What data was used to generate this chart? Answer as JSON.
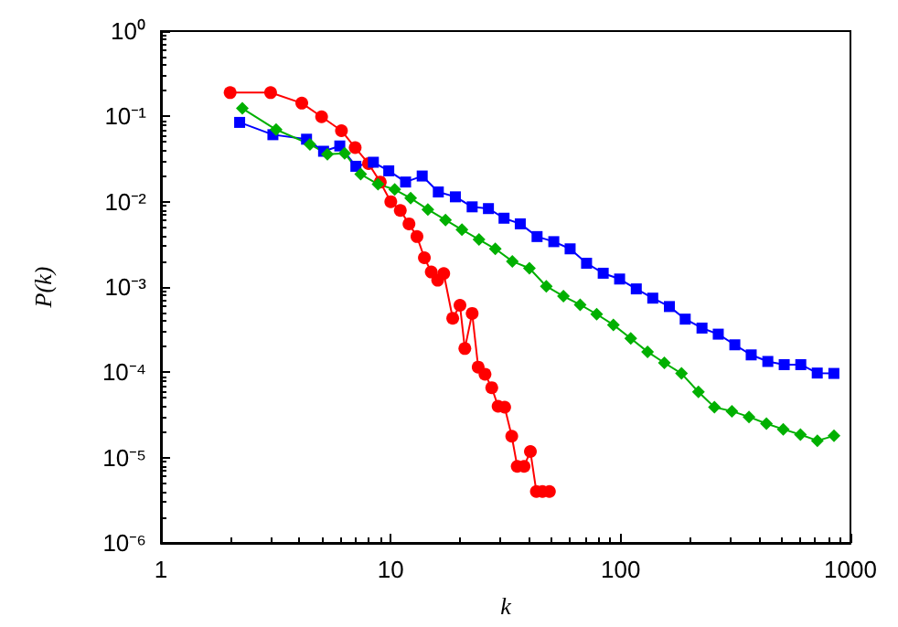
{
  "chart_data": {
    "type": "line",
    "xlabel": "k",
    "ylabel": "P(k)",
    "log": "xy",
    "grid": false,
    "line_style": "solid",
    "xlim": [
      1,
      1000
    ],
    "xticks": [
      1,
      10,
      100,
      1000
    ],
    "ylim": [
      1e-06,
      1
    ],
    "yticks": [
      {
        "value": 1,
        "label": "10⁰"
      },
      {
        "value": 0.1,
        "label": "10⁻¹"
      },
      {
        "value": 0.01,
        "label": "10⁻²"
      },
      {
        "value": 0.001,
        "label": "10⁻³"
      },
      {
        "value": 0.0001,
        "label": "10⁻⁴"
      },
      {
        "value": 1e-05,
        "label": "10⁻⁵"
      },
      {
        "value": 1e-06,
        "label": "10⁻⁶"
      }
    ],
    "series": [
      {
        "color": "#ff0000",
        "marker": "circle",
        "x": [
          2,
          3,
          4.1,
          5,
          6.1,
          7,
          8,
          9,
          10,
          11,
          12,
          13,
          14,
          15,
          16,
          17,
          18.6,
          20,
          21,
          22.6,
          24,
          25.7,
          27.5,
          29.3,
          31.3,
          33.6,
          35.5,
          38,
          40.5,
          43,
          45.7,
          49
        ],
        "values": [
          0.19,
          0.19,
          0.143,
          0.099,
          0.068,
          0.043,
          0.028,
          0.017,
          0.01,
          0.0079,
          0.0055,
          0.0039,
          0.0022,
          0.0015,
          0.0012,
          0.00144,
          0.00043,
          0.00061,
          0.00019,
          0.00049,
          0.000115,
          9.5e-05,
          6.6e-05,
          4e-05,
          3.9e-05,
          1.78e-05,
          7.9e-06,
          7.9e-06,
          1.18e-05,
          4e-06,
          4e-06,
          4e-06
        ]
      },
      {
        "color": "#0000ff",
        "marker": "square",
        "x": [
          2.2,
          3.07,
          4.3,
          5.1,
          6,
          7.05,
          8.4,
          9.8,
          11.6,
          13.7,
          16.1,
          19.1,
          22.6,
          26.6,
          31.1,
          36.6,
          43.3,
          51.2,
          60.3,
          71.1,
          84,
          99,
          117,
          138,
          163,
          191,
          226,
          266,
          314,
          370,
          437,
          515,
          608,
          717,
          847
        ],
        "values": [
          0.085,
          0.061,
          0.054,
          0.039,
          0.045,
          0.026,
          0.029,
          0.023,
          0.017,
          0.02,
          0.013,
          0.0114,
          0.0087,
          0.0083,
          0.0064,
          0.0055,
          0.0039,
          0.0034,
          0.0028,
          0.0019,
          0.00145,
          0.00124,
          0.00095,
          0.00074,
          0.00059,
          0.00042,
          0.00033,
          0.00028,
          0.00021,
          0.00016,
          0.000134,
          0.000123,
          0.000123,
          9.8e-05,
          9.7e-05
        ]
      },
      {
        "color": "#00b000",
        "marker": "diamond",
        "x": [
          2.26,
          3.17,
          4.45,
          5.3,
          6.3,
          7.4,
          8.8,
          10.4,
          12.2,
          14.5,
          17.3,
          20.4,
          24.2,
          28.5,
          33.8,
          40.1,
          47.5,
          56.4,
          66.7,
          78.7,
          93,
          110.7,
          131,
          155,
          184,
          218,
          256,
          305,
          362,
          431,
          510,
          606,
          718,
          848
        ],
        "values": [
          0.124,
          0.07,
          0.047,
          0.036,
          0.037,
          0.021,
          0.016,
          0.0139,
          0.011,
          0.0081,
          0.0061,
          0.0047,
          0.0036,
          0.0028,
          0.002,
          0.00166,
          0.00102,
          0.00078,
          0.00062,
          0.00048,
          0.00036,
          0.00025,
          0.000174,
          0.000129,
          9.7e-05,
          5.9e-05,
          3.9e-05,
          3.5e-05,
          3e-05,
          2.5e-05,
          2.15e-05,
          1.86e-05,
          1.58e-05,
          1.8e-05
        ]
      }
    ]
  }
}
